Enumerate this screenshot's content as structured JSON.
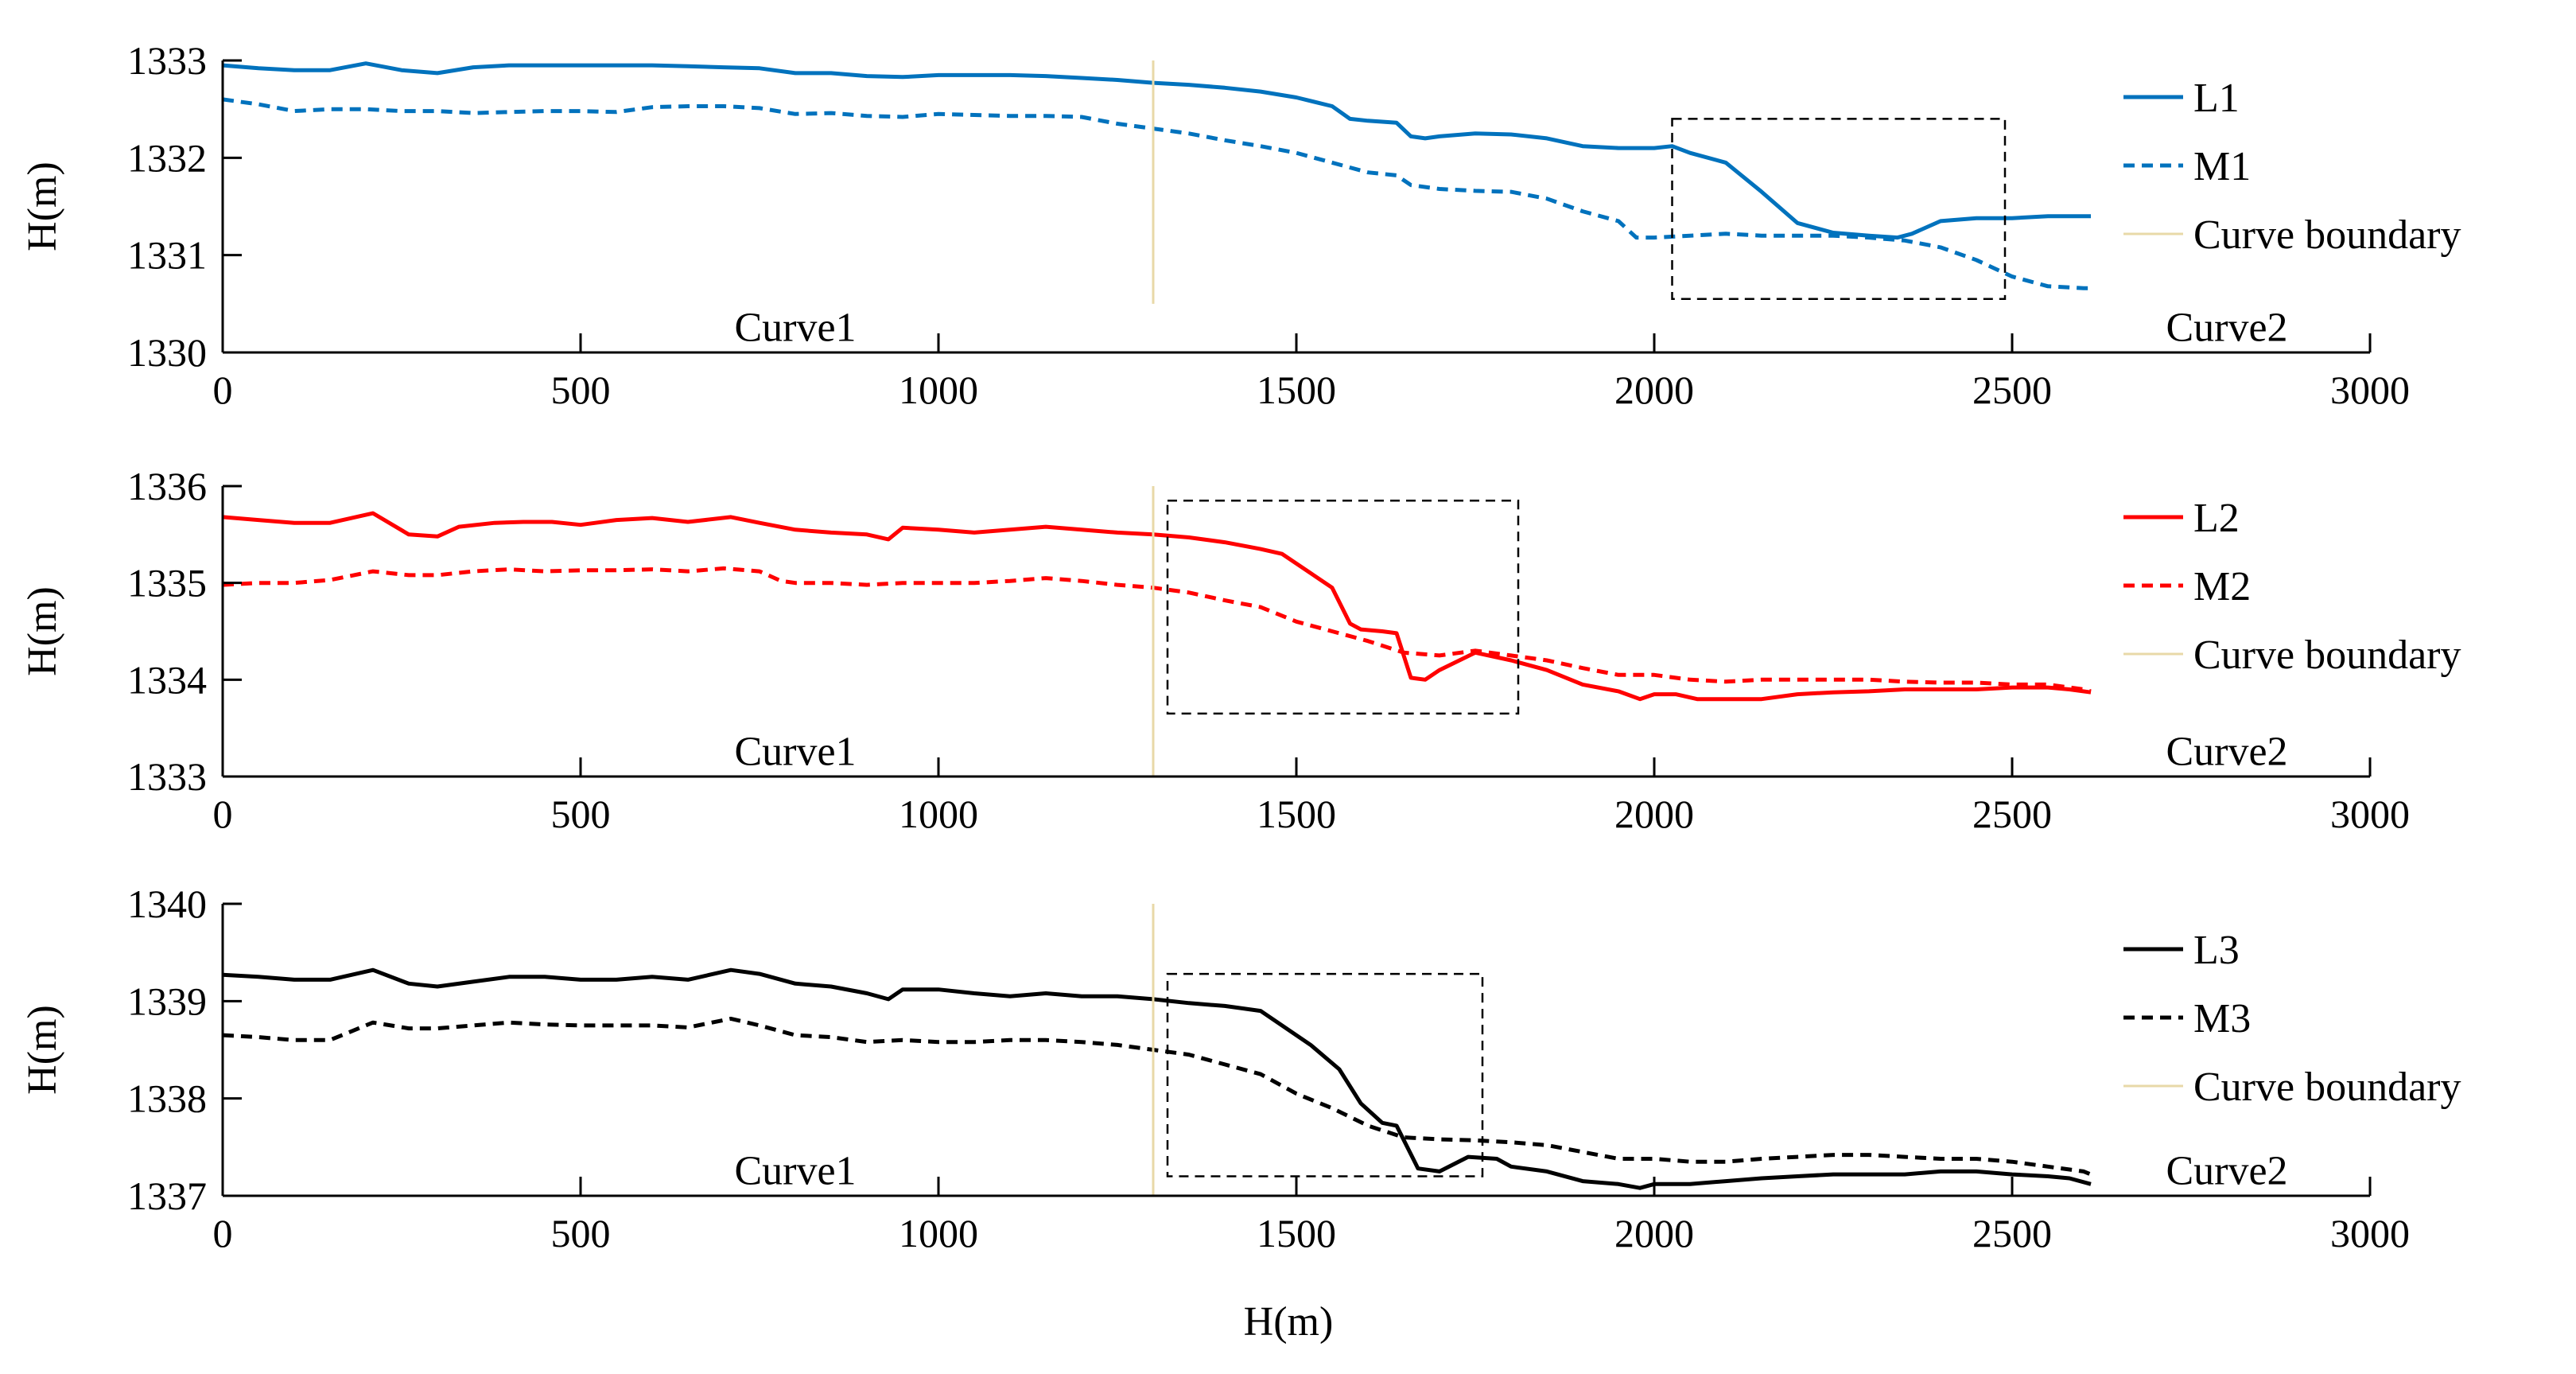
{
  "figure": {
    "shared_xlabel": "H(m)"
  },
  "chart_data": [
    {
      "type": "line",
      "title": "",
      "xlabel": "",
      "ylabel": "H(m)",
      "xlim": [
        0,
        3000
      ],
      "ylim": [
        1330,
        1333
      ],
      "xticks": [
        0,
        500,
        1000,
        1500,
        2000,
        2500,
        3000
      ],
      "yticks": [
        1330,
        1331,
        1332,
        1333
      ],
      "boundary": {
        "name": "Curve boundary",
        "x": 1300,
        "y_range": [
          1330.5,
          1333
        ],
        "color": "#e8d9a8"
      },
      "region_labels": [
        {
          "text": "Curve1",
          "x": 800,
          "y": 1330.25
        },
        {
          "text": "Curve2",
          "x": 2800,
          "y": 1330.25
        }
      ],
      "highlight_box": {
        "x": [
          2025,
          2490
        ],
        "y": [
          1330.55,
          1332.4
        ]
      },
      "series": [
        {
          "name": "L1",
          "color": "#0072bd",
          "dash": "solid",
          "x": [
            0,
            50,
            100,
            150,
            200,
            250,
            300,
            350,
            400,
            450,
            500,
            550,
            600,
            650,
            700,
            750,
            800,
            850,
            900,
            950,
            1000,
            1050,
            1100,
            1150,
            1200,
            1250,
            1300,
            1350,
            1400,
            1450,
            1500,
            1550,
            1575,
            1600,
            1640,
            1660,
            1680,
            1700,
            1750,
            1800,
            1850,
            1900,
            1950,
            2000,
            2025,
            2050,
            2100,
            2150,
            2200,
            2250,
            2300,
            2340,
            2360,
            2400,
            2450,
            2500,
            2550,
            2600,
            2610
          ],
          "y": [
            1332.95,
            1332.92,
            1332.9,
            1332.9,
            1332.97,
            1332.9,
            1332.87,
            1332.93,
            1332.95,
            1332.95,
            1332.95,
            1332.95,
            1332.95,
            1332.94,
            1332.93,
            1332.92,
            1332.87,
            1332.87,
            1332.84,
            1332.83,
            1332.85,
            1332.85,
            1332.85,
            1332.84,
            1332.82,
            1332.8,
            1332.77,
            1332.75,
            1332.72,
            1332.68,
            1332.62,
            1332.53,
            1332.4,
            1332.38,
            1332.36,
            1332.22,
            1332.2,
            1332.22,
            1332.25,
            1332.24,
            1332.2,
            1332.12,
            1332.1,
            1332.1,
            1332.12,
            1332.05,
            1331.95,
            1331.65,
            1331.33,
            1331.23,
            1331.2,
            1331.18,
            1331.22,
            1331.35,
            1331.38,
            1331.38,
            1331.4,
            1331.4,
            1331.4
          ]
        },
        {
          "name": "M1",
          "color": "#0072bd",
          "dash": "dashed",
          "x": [
            0,
            50,
            100,
            150,
            200,
            250,
            300,
            350,
            400,
            450,
            500,
            550,
            600,
            650,
            700,
            750,
            800,
            850,
            900,
            950,
            1000,
            1050,
            1100,
            1150,
            1200,
            1250,
            1300,
            1350,
            1400,
            1450,
            1500,
            1550,
            1600,
            1640,
            1660,
            1700,
            1750,
            1800,
            1850,
            1900,
            1950,
            1975,
            2000,
            2050,
            2100,
            2150,
            2200,
            2250,
            2300,
            2350,
            2400,
            2450,
            2500,
            2550,
            2600,
            2610
          ],
          "y": [
            1332.6,
            1332.55,
            1332.48,
            1332.5,
            1332.5,
            1332.48,
            1332.48,
            1332.46,
            1332.47,
            1332.48,
            1332.48,
            1332.47,
            1332.52,
            1332.53,
            1332.53,
            1332.51,
            1332.45,
            1332.46,
            1332.43,
            1332.42,
            1332.45,
            1332.44,
            1332.43,
            1332.43,
            1332.42,
            1332.35,
            1332.3,
            1332.25,
            1332.18,
            1332.12,
            1332.05,
            1331.95,
            1331.85,
            1331.82,
            1331.72,
            1331.68,
            1331.66,
            1331.65,
            1331.58,
            1331.45,
            1331.35,
            1331.18,
            1331.18,
            1331.2,
            1331.22,
            1331.2,
            1331.2,
            1331.2,
            1331.18,
            1331.15,
            1331.08,
            1330.95,
            1330.78,
            1330.68,
            1330.66,
            1330.66
          ]
        }
      ]
    },
    {
      "type": "line",
      "title": "",
      "xlabel": "",
      "ylabel": "H(m)",
      "xlim": [
        0,
        3000
      ],
      "ylim": [
        1333,
        1336
      ],
      "xticks": [
        0,
        500,
        1000,
        1500,
        2000,
        2500,
        3000
      ],
      "yticks": [
        1333,
        1334,
        1335,
        1336
      ],
      "boundary": {
        "name": "Curve boundary",
        "x": 1300,
        "y_range": [
          1333,
          1336
        ],
        "color": "#e8d9a8"
      },
      "region_labels": [
        {
          "text": "Curve1",
          "x": 800,
          "y": 1333.25
        },
        {
          "text": "Curve2",
          "x": 2800,
          "y": 1333.25
        }
      ],
      "highlight_box": {
        "x": [
          1320,
          1810
        ],
        "y": [
          1333.65,
          1335.85
        ]
      },
      "series": [
        {
          "name": "L2",
          "color": "#ff0000",
          "dash": "solid",
          "x": [
            0,
            50,
            100,
            150,
            210,
            260,
            300,
            330,
            380,
            420,
            460,
            500,
            550,
            600,
            650,
            710,
            750,
            800,
            850,
            900,
            930,
            950,
            1000,
            1050,
            1100,
            1150,
            1200,
            1250,
            1300,
            1350,
            1400,
            1450,
            1480,
            1500,
            1550,
            1575,
            1590,
            1620,
            1640,
            1660,
            1680,
            1700,
            1750,
            1800,
            1850,
            1900,
            1950,
            1980,
            2000,
            2030,
            2060,
            2100,
            2150,
            2200,
            2250,
            2300,
            2350,
            2400,
            2450,
            2500,
            2550,
            2580,
            2610
          ],
          "y": [
            1335.68,
            1335.65,
            1335.62,
            1335.62,
            1335.72,
            1335.5,
            1335.48,
            1335.58,
            1335.62,
            1335.63,
            1335.63,
            1335.6,
            1335.65,
            1335.67,
            1335.63,
            1335.68,
            1335.62,
            1335.55,
            1335.52,
            1335.5,
            1335.45,
            1335.57,
            1335.55,
            1335.52,
            1335.55,
            1335.58,
            1335.55,
            1335.52,
            1335.5,
            1335.47,
            1335.42,
            1335.35,
            1335.3,
            1335.2,
            1334.95,
            1334.58,
            1334.52,
            1334.5,
            1334.48,
            1334.02,
            1334.0,
            1334.1,
            1334.28,
            1334.2,
            1334.1,
            1333.95,
            1333.88,
            1333.8,
            1333.85,
            1333.85,
            1333.8,
            1333.8,
            1333.8,
            1333.85,
            1333.87,
            1333.88,
            1333.9,
            1333.9,
            1333.9,
            1333.92,
            1333.92,
            1333.9,
            1333.87
          ]
        },
        {
          "name": "M2",
          "color": "#ff0000",
          "dash": "dashed",
          "x": [
            0,
            50,
            100,
            150,
            210,
            260,
            300,
            350,
            400,
            450,
            500,
            550,
            600,
            650,
            700,
            750,
            780,
            800,
            850,
            900,
            950,
            1000,
            1050,
            1100,
            1150,
            1200,
            1250,
            1300,
            1350,
            1400,
            1450,
            1500,
            1550,
            1600,
            1650,
            1700,
            1750,
            1800,
            1850,
            1900,
            1950,
            2000,
            2050,
            2100,
            2150,
            2200,
            2250,
            2300,
            2350,
            2400,
            2450,
            2500,
            2550,
            2600,
            2610
          ],
          "y": [
            1334.98,
            1335.0,
            1335.0,
            1335.03,
            1335.12,
            1335.08,
            1335.08,
            1335.12,
            1335.14,
            1335.12,
            1335.13,
            1335.13,
            1335.14,
            1335.12,
            1335.15,
            1335.12,
            1335.02,
            1335.0,
            1335.0,
            1334.98,
            1335.0,
            1335.0,
            1335.0,
            1335.02,
            1335.05,
            1335.02,
            1334.98,
            1334.95,
            1334.9,
            1334.82,
            1334.75,
            1334.6,
            1334.5,
            1334.4,
            1334.28,
            1334.25,
            1334.3,
            1334.25,
            1334.2,
            1334.12,
            1334.05,
            1334.05,
            1334.0,
            1333.98,
            1334.0,
            1334.0,
            1334.0,
            1334.0,
            1333.98,
            1333.97,
            1333.97,
            1333.95,
            1333.95,
            1333.9,
            1333.88
          ]
        }
      ]
    },
    {
      "type": "line",
      "title": "",
      "xlabel": "H(m)",
      "ylabel": "H(m)",
      "xlim": [
        0,
        3000
      ],
      "ylim": [
        1337,
        1340
      ],
      "xticks": [
        0,
        500,
        1000,
        1500,
        2000,
        2500,
        3000
      ],
      "yticks": [
        1337,
        1338,
        1339,
        1340
      ],
      "boundary": {
        "name": "Curve boundary",
        "x": 1300,
        "y_range": [
          1337,
          1340
        ],
        "color": "#e8d9a8"
      },
      "region_labels": [
        {
          "text": "Curve1",
          "x": 800,
          "y": 1337.25
        },
        {
          "text": "Curve2",
          "x": 2800,
          "y": 1337.25
        }
      ],
      "highlight_box": {
        "x": [
          1320,
          1760
        ],
        "y": [
          1337.2,
          1339.28
        ]
      },
      "series": [
        {
          "name": "L3",
          "color": "#000000",
          "dash": "solid",
          "x": [
            0,
            50,
            100,
            150,
            210,
            260,
            300,
            350,
            400,
            450,
            500,
            550,
            600,
            650,
            710,
            750,
            800,
            850,
            900,
            930,
            950,
            1000,
            1050,
            1100,
            1150,
            1200,
            1250,
            1300,
            1350,
            1400,
            1450,
            1480,
            1520,
            1560,
            1590,
            1620,
            1640,
            1670,
            1700,
            1740,
            1780,
            1800,
            1850,
            1900,
            1950,
            1980,
            2000,
            2050,
            2100,
            2150,
            2200,
            2250,
            2300,
            2350,
            2400,
            2450,
            2500,
            2550,
            2580,
            2610
          ],
          "y": [
            1339.27,
            1339.25,
            1339.22,
            1339.22,
            1339.32,
            1339.18,
            1339.15,
            1339.2,
            1339.25,
            1339.25,
            1339.22,
            1339.22,
            1339.25,
            1339.22,
            1339.32,
            1339.28,
            1339.18,
            1339.15,
            1339.08,
            1339.02,
            1339.12,
            1339.12,
            1339.08,
            1339.05,
            1339.08,
            1339.05,
            1339.05,
            1339.02,
            1338.98,
            1338.95,
            1338.9,
            1338.75,
            1338.55,
            1338.3,
            1337.95,
            1337.75,
            1337.72,
            1337.28,
            1337.25,
            1337.4,
            1337.38,
            1337.3,
            1337.25,
            1337.15,
            1337.12,
            1337.08,
            1337.12,
            1337.12,
            1337.15,
            1337.18,
            1337.2,
            1337.22,
            1337.22,
            1337.22,
            1337.25,
            1337.25,
            1337.22,
            1337.2,
            1337.18,
            1337.12
          ]
        },
        {
          "name": "M3",
          "color": "#000000",
          "dash": "dashed",
          "x": [
            0,
            50,
            100,
            150,
            210,
            260,
            300,
            350,
            400,
            450,
            500,
            550,
            600,
            650,
            710,
            750,
            800,
            850,
            900,
            950,
            1000,
            1050,
            1100,
            1150,
            1200,
            1250,
            1300,
            1350,
            1400,
            1450,
            1500,
            1550,
            1600,
            1650,
            1700,
            1750,
            1800,
            1850,
            1900,
            1950,
            2000,
            2050,
            2100,
            2150,
            2200,
            2250,
            2300,
            2350,
            2400,
            2450,
            2500,
            2550,
            2600,
            2610
          ],
          "y": [
            1338.65,
            1338.63,
            1338.6,
            1338.6,
            1338.78,
            1338.72,
            1338.72,
            1338.75,
            1338.78,
            1338.76,
            1338.75,
            1338.75,
            1338.75,
            1338.73,
            1338.82,
            1338.75,
            1338.65,
            1338.63,
            1338.58,
            1338.6,
            1338.58,
            1338.58,
            1338.6,
            1338.6,
            1338.58,
            1338.55,
            1338.5,
            1338.45,
            1338.35,
            1338.25,
            1338.05,
            1337.9,
            1337.72,
            1337.6,
            1337.58,
            1337.57,
            1337.55,
            1337.52,
            1337.45,
            1337.38,
            1337.38,
            1337.35,
            1337.35,
            1337.38,
            1337.4,
            1337.42,
            1337.42,
            1337.4,
            1337.38,
            1337.38,
            1337.35,
            1337.3,
            1337.25,
            1337.22
          ]
        }
      ]
    }
  ]
}
